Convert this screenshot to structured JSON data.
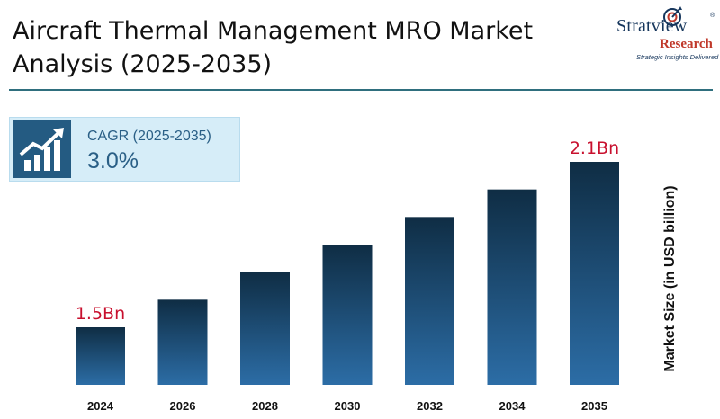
{
  "header": {
    "title_line1": "Aircraft Thermal Management MRO Market",
    "title_line2": "Analysis (2025-2035)"
  },
  "logo": {
    "name": "Stratview",
    "sub": "Research",
    "tagline": "Strategic Insights Delivered",
    "reg": "®"
  },
  "cagr": {
    "label": "CAGR (2025-2035)",
    "value": "3.0%",
    "icon": "growth-chart-icon"
  },
  "colors": {
    "accent_rule": "#2f6f7e",
    "bar_top": "#0f2d44",
    "bar_bottom": "#2c6da6",
    "callout": "#c8102e",
    "cagr_box": "#d6edf8"
  },
  "chart_data": {
    "type": "bar",
    "categories": [
      "2024",
      "2026",
      "2028",
      "2030",
      "2032",
      "2034",
      "2035"
    ],
    "values": [
      1.5,
      1.6,
      1.7,
      1.8,
      1.9,
      2.0,
      2.1
    ],
    "value_labels": [
      "1.5Bn",
      "",
      "",
      "",
      "",
      "",
      "2.1Bn"
    ],
    "ylabel": "Market Size (in USD billion)",
    "xlabel": "",
    "grid": false,
    "legend": "none"
  }
}
